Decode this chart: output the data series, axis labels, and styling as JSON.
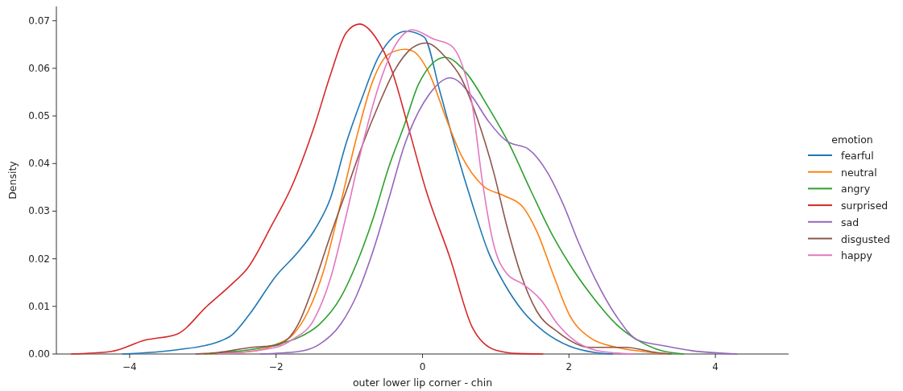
{
  "chart_data": {
    "type": "line",
    "xlabel": "outer lower lip corner - chin",
    "ylabel": "Density",
    "legend_title": "emotion",
    "legend": "right",
    "xlim": [
      -5,
      5
    ],
    "ylim": [
      0,
      0.073
    ],
    "xticks": [
      {
        "value": -4,
        "label": "−4"
      },
      {
        "value": -2,
        "label": "−2"
      },
      0,
      2,
      4
    ],
    "yticks": [
      {
        "value": 0,
        "label": "0.00"
      },
      {
        "value": 0.01,
        "label": "0.01"
      },
      {
        "value": 0.02,
        "label": "0.02"
      },
      {
        "value": 0.03,
        "label": "0.03"
      },
      {
        "value": 0.04,
        "label": "0.04"
      },
      {
        "value": 0.05,
        "label": "0.05"
      },
      {
        "value": 0.06,
        "label": "0.06"
      },
      {
        "value": 0.07,
        "label": "0.07"
      }
    ],
    "series": [
      {
        "name": "fearful",
        "color": "#1f77b4",
        "x": [
          -4.1,
          -3.35,
          -2.8,
          -2.61,
          -2.36,
          -2.0,
          -1.7,
          -1.48,
          -1.26,
          -1.04,
          -0.82,
          -0.6,
          -0.22,
          0.02,
          0.24,
          0.46,
          0.68,
          0.9,
          1.12,
          1.37,
          1.67,
          2.0,
          2.36,
          2.6
        ],
        "values": [
          0,
          0.0009,
          0.0025,
          0.0039,
          0.0084,
          0.0164,
          0.0214,
          0.0259,
          0.0326,
          0.0444,
          0.054,
          0.0624,
          0.0678,
          0.0666,
          0.055,
          0.0427,
          0.0315,
          0.0214,
          0.0147,
          0.009,
          0.0046,
          0.0017,
          0.0003,
          0
        ]
      },
      {
        "name": "neutral",
        "color": "#ff7f0e",
        "x": [
          -3.0,
          -2.36,
          -2.0,
          -1.78,
          -1.56,
          -1.34,
          -1.12,
          -0.9,
          -0.68,
          -0.46,
          -0.24,
          -0.13,
          0.09,
          0.31,
          0.53,
          0.82,
          1.12,
          1.37,
          1.56,
          1.78,
          2.0,
          2.29,
          2.65,
          3.02,
          3.3
        ],
        "values": [
          0,
          0.0005,
          0.002,
          0.0039,
          0.009,
          0.018,
          0.0315,
          0.0455,
          0.0573,
          0.063,
          0.064,
          0.0636,
          0.059,
          0.05,
          0.0417,
          0.0354,
          0.0332,
          0.0309,
          0.0258,
          0.0169,
          0.0084,
          0.0034,
          0.0014,
          0.0005,
          0
        ]
      },
      {
        "name": "angry",
        "color": "#2ca02c",
        "x": [
          -2.98,
          -2.0,
          -1.7,
          -1.41,
          -1.12,
          -0.9,
          -0.68,
          -0.46,
          -0.25,
          -0.05,
          0.31,
          0.6,
          0.9,
          1.19,
          1.48,
          1.78,
          2.07,
          2.36,
          2.65,
          2.94,
          3.24,
          3.57
        ],
        "values": [
          0,
          0.002,
          0.0034,
          0.0062,
          0.0118,
          0.019,
          0.0282,
          0.0393,
          0.048,
          0.0568,
          0.0623,
          0.059,
          0.0518,
          0.0439,
          0.0343,
          0.0248,
          0.0174,
          0.0113,
          0.0062,
          0.0029,
          0.0008,
          0
        ]
      },
      {
        "name": "surprised",
        "color": "#d62728",
        "x": [
          -4.8,
          -4.26,
          -3.79,
          -3.35,
          -2.94,
          -2.61,
          -2.39,
          -2.06,
          -1.78,
          -1.48,
          -1.26,
          -1.04,
          -0.86,
          -0.64,
          -0.42,
          -0.2,
          0.05,
          0.38,
          0.68,
          1.0,
          1.3,
          1.65
        ],
        "values": [
          0,
          0.0005,
          0.0029,
          0.0042,
          0.0101,
          0.0146,
          0.018,
          0.027,
          0.0354,
          0.0477,
          0.0585,
          0.0675,
          0.0693,
          0.0665,
          0.0596,
          0.048,
          0.0343,
          0.02,
          0.0056,
          0.0008,
          0.0001,
          0
        ]
      },
      {
        "name": "sad",
        "color": "#9467bd",
        "x": [
          -2.22,
          -1.7,
          -1.41,
          -1.12,
          -0.9,
          -0.68,
          -0.46,
          -0.25,
          0.09,
          0.38,
          0.68,
          0.9,
          1.15,
          1.45,
          1.7,
          1.92,
          2.14,
          2.36,
          2.65,
          2.94,
          3.31,
          3.68,
          4.3
        ],
        "values": [
          0,
          0.0005,
          0.002,
          0.0062,
          0.0123,
          0.0214,
          0.0326,
          0.0437,
          0.0545,
          0.058,
          0.054,
          0.0489,
          0.0447,
          0.043,
          0.0383,
          0.0315,
          0.0231,
          0.0157,
          0.0079,
          0.0029,
          0.0017,
          0.0007,
          0
        ]
      },
      {
        "name": "disgusted",
        "color": "#8c564b",
        "x": [
          -3.1,
          -2.8,
          -2.33,
          -2.0,
          -1.7,
          -1.48,
          -1.26,
          -1.04,
          -0.82,
          -0.6,
          -0.38,
          -0.13,
          0.05,
          0.31,
          0.53,
          0.75,
          0.97,
          1.15,
          1.34,
          1.56,
          1.85,
          2.29,
          2.77,
          3.2,
          3.4
        ],
        "values": [
          0,
          0.0003,
          0.0014,
          0.0018,
          0.0062,
          0.0147,
          0.0248,
          0.0343,
          0.0439,
          0.0523,
          0.0596,
          0.0644,
          0.0653,
          0.0624,
          0.0579,
          0.0494,
          0.0383,
          0.027,
          0.0169,
          0.009,
          0.0046,
          0.0014,
          0.0014,
          0.0003,
          0
        ]
      },
      {
        "name": "happy",
        "color": "#e377c2",
        "x": [
          -2.8,
          -2.0,
          -1.78,
          -1.48,
          -1.26,
          -1.04,
          -0.82,
          -0.6,
          -0.38,
          -0.14,
          0.16,
          0.38,
          0.53,
          0.68,
          0.82,
          0.97,
          1.15,
          1.37,
          1.62,
          1.85,
          2.07,
          2.36,
          2.65,
          2.9
        ],
        "values": [
          0,
          0.0014,
          0.003,
          0.0073,
          0.0157,
          0.0292,
          0.0439,
          0.0562,
          0.0646,
          0.0681,
          0.0661,
          0.0649,
          0.0612,
          0.0523,
          0.036,
          0.0231,
          0.0169,
          0.0147,
          0.0113,
          0.0062,
          0.0029,
          0.0008,
          0.0002,
          0
        ]
      }
    ]
  }
}
